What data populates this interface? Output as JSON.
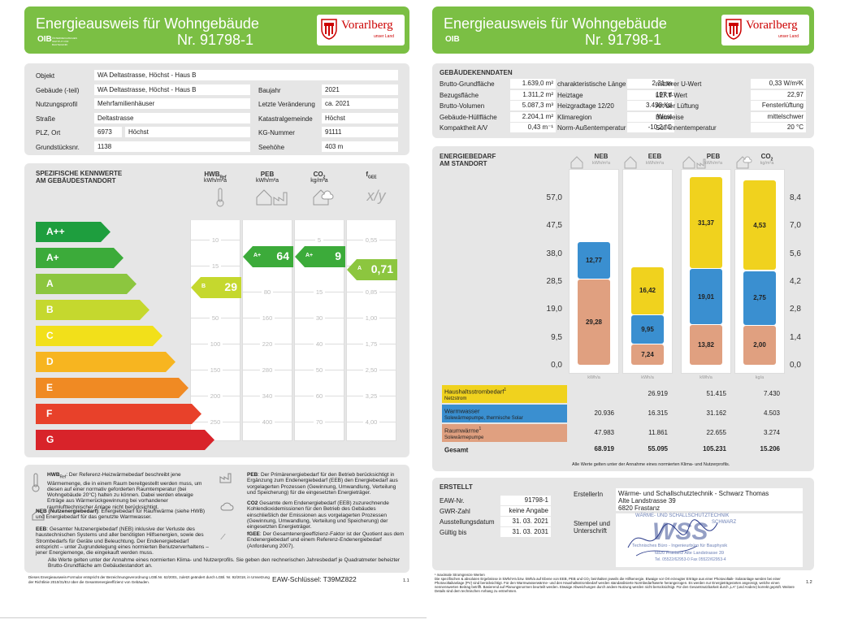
{
  "page1": {
    "title": "Energieausweis für Wohngebäude",
    "number": "Nr. 91798-1",
    "oib": "OIB",
    "oib_sub": "ÖSTERREICHISCHES INSTITUT FÜR BAUTECHNIK",
    "logo_text": "Vorarlberg",
    "logo_sub": "unser Land",
    "object": [
      {
        "label": "Objekt",
        "value": "WA Deltastrasse, Höchst - Haus B"
      },
      {
        "label": "Gebäude (-teil)",
        "value": "WA Deltastrasse, Höchst - Haus B",
        "label2": "Baujahr",
        "value2": "2021"
      },
      {
        "label": "Nutzungsprofil",
        "value": "Mehrfamilienhäuser",
        "label2": "Letzte Veränderung",
        "value2": "ca. 2021"
      },
      {
        "label": "Straße",
        "value": "Deltastrasse",
        "label2": "Katastralgemeinde",
        "value2": "Höchst"
      },
      {
        "label": "PLZ, Ort",
        "value": "6973",
        "value_b": "Höchst",
        "label2": "KG-Nummer",
        "value2": "91111"
      },
      {
        "label": "Grundstücksnr.",
        "value": "1138",
        "label2": "Seehöhe",
        "value2": "403 m"
      }
    ],
    "kw_title1": "SPEZIFISCHE KENNWERTE",
    "kw_title2": "AM GEBÄUDESTANDORT",
    "col_heads": [
      {
        "name": "HWB",
        "sub": "Ref",
        "unit": "kWh/m²a"
      },
      {
        "name": "PEB",
        "sub": "",
        "unit": "kWh/m²a"
      },
      {
        "name": "CO",
        "sub": "2",
        "unit": "kg/m²a"
      },
      {
        "name": "f",
        "sub": "GEE",
        "unit": ""
      }
    ],
    "classes": [
      {
        "label": "A++",
        "color": "#1e9e3e",
        "width": 92
      },
      {
        "label": "A+",
        "color": "#3cab3a",
        "width": 108
      },
      {
        "label": "A",
        "color": "#8cc63f",
        "width": 124
      },
      {
        "label": "B",
        "color": "#c5d82e",
        "width": 140
      },
      {
        "label": "C",
        "color": "#f2e01a",
        "width": 156
      },
      {
        "label": "D",
        "color": "#f7b520",
        "width": 172
      },
      {
        "label": "E",
        "color": "#f08a23",
        "width": 188
      },
      {
        "label": "F",
        "color": "#e8412a",
        "width": 204
      },
      {
        "label": "G",
        "color": "#d8232a",
        "width": 220
      }
    ],
    "grid": [
      [
        "10",
        "",
        "5",
        "0,55"
      ],
      [
        "15",
        "",
        "",
        "0,70"
      ],
      [
        "",
        "80",
        "15",
        "0,85"
      ],
      [
        "50",
        "160",
        "30",
        "1,00"
      ],
      [
        "100",
        "220",
        "40",
        "1,75"
      ],
      [
        "150",
        "280",
        "50",
        "2,50"
      ],
      [
        "200",
        "340",
        "60",
        "3,25"
      ],
      [
        "250",
        "400",
        "70",
        "4,00"
      ]
    ],
    "grid_full": [
      [
        "10",
        "",
        "5",
        "0,55"
      ],
      [
        "15",
        "",
        "",
        "0,70"
      ],
      [
        "",
        "80",
        "15",
        "0,85"
      ],
      [
        "50",
        "160",
        "30",
        "1,00"
      ],
      [
        "100",
        "220",
        "40",
        "1,75"
      ],
      [
        "150",
        "280",
        "50",
        "2,50"
      ],
      [
        "200",
        "340",
        "60",
        "3,25"
      ],
      [
        "250",
        "400",
        "70",
        "4,00"
      ]
    ],
    "indicators": [
      {
        "name": "hwb",
        "class": "B",
        "value": "29"
      },
      {
        "name": "peb",
        "class": "A+",
        "value": "64"
      },
      {
        "name": "co2",
        "class": "A+",
        "value": "9"
      },
      {
        "name": "fgee",
        "class": "A",
        "value": "0,71"
      }
    ],
    "defs": {
      "hwb_title": "HWB",
      "hwb_sub": "Ref",
      "hwb_text": ": Der Referenz-Heizwärmebedarf beschreibt jene Wärmemenge, die in einem Raum bereitgestellt werden muss, um diesen auf einer normativ geforderten Raumtemperatur (bei Wohngebäude 20°C) halten zu können. Dabei werden etwaige Erträge aus Wärmerückgewinnung bei vorhandener raumlufttechnischer Anlage nicht berücksichtigt.",
      "neb_title": "NEB (Nutzenergiebedarf)",
      "neb_text": ": Energiebedarf für Raumwärme (siehe HWB) und Energiebedarf für das genutzte Warmwasser.",
      "eeb_title": "EEB",
      "eeb_text": ": Gesamter Nutzenergiebedarf (NEB) inklusive der Verluste des haustechnischen Systems und aller benötigten Hilfsenergien, sowie des Strombedarfs für Geräte und Beleuchtung. Der Endenergiebedarf entspricht – unter Zugrundelegung eines normierten Benutzerverhaltens – jener Energiemenge, die eingekauft werden muss.",
      "peb_title": "PEB",
      "peb_text": ": Der Primärenergiebedarf für den Betrieb berücksichtigt in Ergänzung zum Endenergiebedarf (EEB) den Energiebedarf aus vorgelagerten Prozessen (Gewinnung, Umwandlung, Verteilung und Speicherung) für die eingesetzten Energieträger.",
      "co2_title": "CO2",
      "co2_text": " Gesamte dem Endenergiebedarf (EEB) zuzurechnende Kohlendioxidemissionen für den Betrieb des Gebäudes einschließlich der Emissionen aus vorgelagerten Prozessen (Gewinnung, Umwandlung, Verteilung und Speicherung) der eingesetzten Energieträger.",
      "fgee_title": "fGEE",
      "fgee_text": ": Der Gesamtenergieeffizienz-Faktor ist der Quotient aus dem Endenergiebedarf und einem Referenz-Endenergiebedarf (Anforderung 2007).",
      "note": "Alle Werte gelten unter der Annahme eines normierten Klima- und Nutzerprofils. Sie geben den rechnerischen Jahresbedarf je Quadratmeter beheizter Brutto-Grundfläche am Gebäudestandort an."
    },
    "footer1": "Dieses Energieausweis-Formular entspricht der Bezeichnungsverordnung LGBl.Nr. 62/2001, zuletzt geändert durch LGBl. Nr. 92/2018, in Umsetzung der Richtlinie 2010/31/EU über die Gesamtenergieeffizienz von Gebäuden.",
    "eaw_key": "EAW-Schlüssel: T39MZ822",
    "page_no": "1.1"
  },
  "page2": {
    "title": "Energieausweis für Wohngebäude",
    "number": "Nr. 91798-1",
    "oib": "OIB",
    "logo_text": "Vorarlberg",
    "logo_sub": "unser Land",
    "kenn_title": "GEBÄUDEKENNDATEN",
    "kenn": [
      [
        "Brutto-Grundfläche",
        "1.639,0 m²",
        "charakteristische Länge",
        "2,31 m",
        "mittlerer U-Wert",
        "0,33 W/m²K"
      ],
      [
        "Bezugsfläche",
        "1.311,2 m²",
        "Heiztage",
        "197 d",
        "LEKT-Wert",
        "22,97"
      ],
      [
        "Brutto-Volumen",
        "5.087,3 m³",
        "Heizgradtage 12/20",
        "3.458 Kd",
        "Art der Lüftung",
        "Fensterlüftung"
      ],
      [
        "Gebäude-Hüllfläche",
        "2.204,1 m²",
        "Klimaregion",
        "West",
        "Bauweise",
        "mittelschwer"
      ],
      [
        "Kompaktheit A/V",
        "0,43 m⁻¹",
        "Norm-Außentemperatur",
        "-10,2 °C",
        "Soll-Innentemperatur",
        "20 °C"
      ]
    ],
    "eb_title1": "ENERGIEBEDARF",
    "eb_title2": "AM STANDORT",
    "chart_data": {
      "type": "bar",
      "categories": [
        "NEB",
        "EEB",
        "PEB",
        "CO2"
      ],
      "units": [
        "kWh/m²a",
        "kWh/m²a",
        "kWh/m²a",
        "kg/m²a"
      ],
      "y_left": [
        "57,0",
        "47,5",
        "38,0",
        "28,5",
        "19,0",
        "9,5",
        "0,0"
      ],
      "y_right": [
        "8,4",
        "7,0",
        "5,6",
        "4,2",
        "2,8",
        "1,4",
        "0,0"
      ],
      "ylim_left": [
        0,
        57
      ],
      "ylim_right": [
        0,
        8.4
      ],
      "series": [
        {
          "name": "Raumwärme",
          "color": "#e0a080",
          "values": [
            29.28,
            7.24,
            13.82,
            2.0
          ],
          "labels": [
            "29,28",
            "7,24",
            "13,82",
            "2,00"
          ]
        },
        {
          "name": "Warmwasser",
          "color": "#3a8fd0",
          "values": [
            12.77,
            9.95,
            19.01,
            2.75
          ],
          "labels": [
            "12,77",
            "9,95",
            "19,01",
            "2,75"
          ]
        },
        {
          "name": "Haushaltsstrombedarf",
          "color": "#f0d21e",
          "values": [
            0,
            16.42,
            31.37,
            4.53
          ],
          "labels": [
            "",
            "16,42",
            "31,37",
            "4,53"
          ]
        }
      ],
      "data_labels": {
        "unit_row": [
          "kWh/a",
          "kWh/a",
          "kWh/a",
          "kg/a"
        ]
      }
    },
    "table": [
      {
        "name": "Haushaltsstrombedarf",
        "sup": "1",
        "sub": "Netzstrom",
        "color": "#f0d21e",
        "values": [
          "",
          "26.919",
          "51.415",
          "7.430"
        ]
      },
      {
        "name": "Warmwasser",
        "sup": "",
        "sub": "Solewärmepumpe, thermische Solar",
        "color": "#3a8fd0",
        "values": [
          "20.936",
          "16.315",
          "31.162",
          "4.503"
        ]
      },
      {
        "name": "Raumwärme",
        "sup": "1",
        "sub": "Solewärmepumpe",
        "color": "#e0a080",
        "values": [
          "47.983",
          "11.861",
          "22.655",
          "3.274"
        ]
      },
      {
        "name": "Gesamt",
        "sup": "",
        "sub": "",
        "color": "",
        "values": [
          "68.919",
          "55.095",
          "105.231",
          "15.206"
        ]
      }
    ],
    "table_note": "Alle Werte gelten unter der Annahme eines normierten Klima- und Nutzerprofils.",
    "erstellt_title": "ERSTELLT",
    "erstellt": [
      {
        "label": "EAW-Nr.",
        "value": "91798-1"
      },
      {
        "label": "GWR-Zahl",
        "value": "keine Angabe"
      },
      {
        "label": "Ausstellungsdatum",
        "value": "31. 03. 2021"
      },
      {
        "label": "Gültig bis",
        "value": "31. 03. 2031"
      }
    ],
    "ersteller_label": "ErstellerIn",
    "ersteller": [
      "Wärme- und Schallschutztechnik - Schwarz Thomas",
      "Alte Landstrasse 39",
      "6820 Frastanz"
    ],
    "stempel_label1": "Stempel und",
    "stempel_label2": "Unterschrift",
    "stamp_lines": [
      "WÄRME- UND SCHALLSCHUTZTECHNIK",
      "SCHWARZ",
      "Technisches Büro - Ingenieurbüro für Bauphysik",
      "6820 Frastanz Alte Landstrasse 39",
      "Tel. 05522/62953-0 Fax 05522/62953-4"
    ],
    "fn1": "¹ maximale Stromgrenze Werten",
    "fn2": "Die spezifischen & absoluten Ergebnisse in kWh/m²a bzw. kWh/a auf Ebene von EEB, PEB und CO₂ beinhalten jeweils die Hilfsenergie. Etwaige vor Ort erzeugter Erträge aus einer Photovoltaik- Solaranlage werden bei einer Photovoltaikanlage (PV) sind berücksichtigt. Für den Warmwasserwärme- und den Haushaltsstrombedarf werden standardisierte Normbedarfswerte herangezogen. Es werden nur Energieträgerarten angezeigt, welche einen nennenswerten Beitrag betrifft. Basierend auf Planungsnormen beurteilt werden. Etwaige Abweichungen durch andere Nutzung werden nicht berücksichtigt. Für den Gesamtnutzbarkeit durch „LA“ (und Andere) korrekt geprüft. Weitere Details sind dem technischen Anhang zu entnehmen.",
    "page_no": "1.2"
  }
}
